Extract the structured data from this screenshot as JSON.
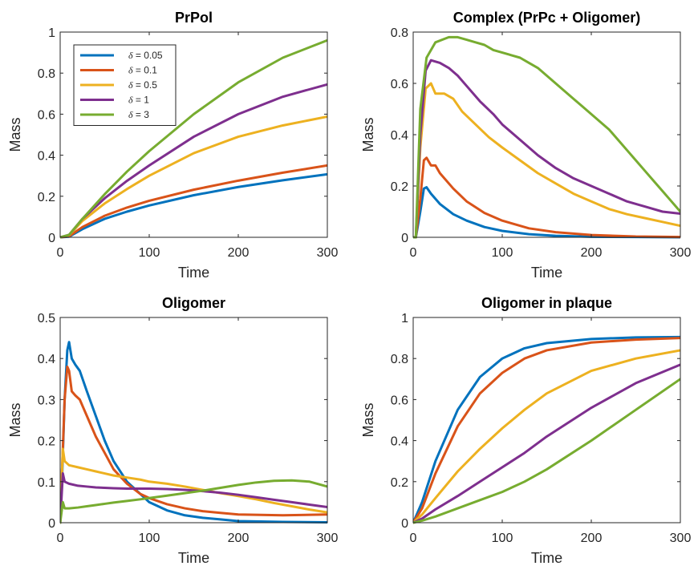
{
  "colors": {
    "0.05": "#0072BD",
    "0.1": "#D95319",
    "0.5": "#EDB120",
    "1": "#7E2F8E",
    "3": "#77AC30"
  },
  "legend": {
    "symbol": "δ",
    "entries": [
      {
        "delta": "0.05",
        "label": " = 0.05"
      },
      {
        "delta": "0.1",
        "label": " = 0.1"
      },
      {
        "delta": "0.5",
        "label": " = 0.5"
      },
      {
        "delta": "1",
        "label": " = 1"
      },
      {
        "delta": "3",
        "label": " = 3"
      }
    ]
  },
  "chart_data": [
    {
      "type": "line",
      "title": "PrPol",
      "xlabel": "Time",
      "ylabel": "Mass",
      "xlim": [
        0,
        300
      ],
      "ylim": [
        0,
        1
      ],
      "xticks": [
        0,
        100,
        200,
        300
      ],
      "yticks": [
        0,
        0.2,
        0.4,
        0.6,
        0.8,
        1
      ],
      "ytick_labels": [
        "0",
        "0.2",
        "0.4",
        "0.6",
        "0.8",
        "1"
      ],
      "legend_position": "top-left",
      "series": [
        {
          "delta": "0.05",
          "x": [
            0,
            10,
            25,
            50,
            75,
            100,
            150,
            200,
            250,
            300
          ],
          "y": [
            0,
            0.003,
            0.04,
            0.09,
            0.125,
            0.155,
            0.205,
            0.245,
            0.278,
            0.307
          ]
        },
        {
          "delta": "0.1",
          "x": [
            0,
            10,
            25,
            50,
            75,
            100,
            150,
            200,
            250,
            300
          ],
          "y": [
            0,
            0.005,
            0.05,
            0.105,
            0.145,
            0.178,
            0.232,
            0.276,
            0.315,
            0.35
          ]
        },
        {
          "delta": "0.5",
          "x": [
            0,
            10,
            25,
            50,
            75,
            100,
            150,
            200,
            250,
            300
          ],
          "y": [
            0,
            0.01,
            0.08,
            0.165,
            0.235,
            0.3,
            0.41,
            0.49,
            0.545,
            0.588
          ]
        },
        {
          "delta": "1",
          "x": [
            0,
            10,
            25,
            50,
            75,
            100,
            150,
            200,
            250,
            300
          ],
          "y": [
            0,
            0.012,
            0.09,
            0.19,
            0.275,
            0.35,
            0.49,
            0.6,
            0.685,
            0.745
          ]
        },
        {
          "delta": "3",
          "x": [
            0,
            10,
            25,
            50,
            75,
            100,
            150,
            200,
            250,
            300
          ],
          "y": [
            0,
            0.012,
            0.09,
            0.21,
            0.32,
            0.42,
            0.6,
            0.755,
            0.875,
            0.96
          ]
        }
      ]
    },
    {
      "type": "line",
      "title": "Complex (PrPc + Oligomer)",
      "xlabel": "Time",
      "ylabel": "Mass",
      "xlim": [
        0,
        300
      ],
      "ylim": [
        0,
        0.8
      ],
      "xticks": [
        0,
        100,
        200,
        300
      ],
      "yticks": [
        0,
        0.2,
        0.4,
        0.6,
        0.8
      ],
      "ytick_labels": [
        "0",
        "0.2",
        "0.4",
        "0.6",
        "0.8"
      ],
      "series": [
        {
          "delta": "0.05",
          "x": [
            0,
            3,
            8,
            12,
            15,
            20,
            30,
            45,
            60,
            80,
            100,
            130,
            160,
            200,
            250,
            300
          ],
          "y": [
            0,
            0,
            0.1,
            0.19,
            0.195,
            0.17,
            0.13,
            0.09,
            0.065,
            0.04,
            0.025,
            0.012,
            0.006,
            0.002,
            0.001,
            0
          ]
        },
        {
          "delta": "0.1",
          "x": [
            0,
            3,
            8,
            12,
            15,
            20,
            25,
            30,
            45,
            60,
            80,
            100,
            130,
            160,
            200,
            250,
            300
          ],
          "y": [
            0,
            0,
            0.15,
            0.3,
            0.31,
            0.28,
            0.28,
            0.25,
            0.19,
            0.14,
            0.095,
            0.065,
            0.035,
            0.02,
            0.009,
            0.003,
            0.001
          ]
        },
        {
          "delta": "0.5",
          "x": [
            0,
            3,
            8,
            14,
            20,
            25,
            35,
            45,
            55,
            70,
            85,
            100,
            120,
            140,
            160,
            180,
            200,
            220,
            240,
            260,
            280,
            300
          ],
          "y": [
            0,
            0,
            0.35,
            0.58,
            0.6,
            0.56,
            0.56,
            0.54,
            0.49,
            0.44,
            0.39,
            0.35,
            0.3,
            0.25,
            0.21,
            0.17,
            0.14,
            0.11,
            0.09,
            0.075,
            0.06,
            0.045
          ]
        },
        {
          "delta": "1",
          "x": [
            0,
            3,
            8,
            14,
            20,
            30,
            40,
            50,
            60,
            75,
            90,
            100,
            120,
            140,
            160,
            180,
            200,
            220,
            240,
            260,
            280,
            300
          ],
          "y": [
            0,
            0,
            0.4,
            0.65,
            0.69,
            0.68,
            0.66,
            0.63,
            0.59,
            0.53,
            0.48,
            0.44,
            0.38,
            0.32,
            0.27,
            0.23,
            0.2,
            0.17,
            0.14,
            0.12,
            0.1,
            0.092
          ]
        },
        {
          "delta": "3",
          "x": [
            0,
            3,
            8,
            15,
            25,
            40,
            50,
            60,
            70,
            80,
            90,
            100,
            110,
            120,
            130,
            140,
            150,
            160,
            170,
            180,
            190,
            200,
            210,
            220,
            230,
            240,
            250,
            260,
            270,
            280,
            290,
            300
          ],
          "y": [
            0,
            0,
            0.5,
            0.7,
            0.76,
            0.78,
            0.78,
            0.77,
            0.76,
            0.75,
            0.73,
            0.72,
            0.71,
            0.7,
            0.68,
            0.66,
            0.63,
            0.6,
            0.57,
            0.54,
            0.51,
            0.48,
            0.45,
            0.42,
            0.38,
            0.34,
            0.3,
            0.26,
            0.22,
            0.18,
            0.14,
            0.1
          ]
        }
      ]
    },
    {
      "type": "line",
      "title": "Oligomer",
      "xlabel": "Time",
      "ylabel": "Mass",
      "xlim": [
        0,
        300
      ],
      "ylim": [
        0,
        0.5
      ],
      "xticks": [
        0,
        100,
        200,
        300
      ],
      "yticks": [
        0,
        0.1,
        0.2,
        0.3,
        0.4,
        0.5
      ],
      "ytick_labels": [
        "0",
        "0.1",
        "0.2",
        "0.3",
        "0.4",
        "0.5"
      ],
      "series": [
        {
          "delta": "0.05",
          "x": [
            0,
            2,
            5,
            8,
            10,
            13,
            17,
            22,
            30,
            40,
            50,
            60,
            75,
            90,
            100,
            120,
            140,
            160,
            180,
            200,
            250,
            300
          ],
          "y": [
            0,
            0.1,
            0.3,
            0.42,
            0.44,
            0.4,
            0.385,
            0.37,
            0.32,
            0.26,
            0.2,
            0.15,
            0.1,
            0.07,
            0.05,
            0.03,
            0.018,
            0.012,
            0.008,
            0.004,
            0.002,
            0.001
          ]
        },
        {
          "delta": "0.1",
          "x": [
            0,
            2,
            5,
            8,
            10,
            13,
            17,
            22,
            30,
            40,
            50,
            60,
            75,
            90,
            100,
            120,
            140,
            160,
            180,
            200,
            250,
            300
          ],
          "y": [
            0,
            0.12,
            0.3,
            0.38,
            0.37,
            0.32,
            0.31,
            0.3,
            0.26,
            0.21,
            0.17,
            0.13,
            0.095,
            0.07,
            0.06,
            0.045,
            0.035,
            0.028,
            0.024,
            0.02,
            0.018,
            0.02
          ]
        },
        {
          "delta": "0.5",
          "x": [
            0,
            3,
            5,
            10,
            20,
            30,
            40,
            50,
            60,
            75,
            90,
            100,
            120,
            140,
            160,
            180,
            200,
            220,
            240,
            260,
            280,
            300
          ],
          "y": [
            0,
            0.18,
            0.15,
            0.14,
            0.135,
            0.13,
            0.125,
            0.12,
            0.115,
            0.11,
            0.105,
            0.1,
            0.095,
            0.088,
            0.08,
            0.072,
            0.065,
            0.057,
            0.048,
            0.04,
            0.032,
            0.025
          ]
        },
        {
          "delta": "1",
          "x": [
            0,
            3,
            5,
            10,
            20,
            30,
            40,
            50,
            60,
            75,
            90,
            100,
            120,
            140,
            160,
            180,
            200,
            220,
            240,
            260,
            280,
            300
          ],
          "y": [
            0,
            0.12,
            0.1,
            0.095,
            0.09,
            0.088,
            0.086,
            0.085,
            0.084,
            0.083,
            0.083,
            0.083,
            0.082,
            0.08,
            0.077,
            0.073,
            0.068,
            0.062,
            0.056,
            0.05,
            0.044,
            0.038
          ]
        },
        {
          "delta": "3",
          "x": [
            0,
            3,
            5,
            10,
            20,
            30,
            40,
            50,
            60,
            75,
            90,
            100,
            120,
            140,
            160,
            180,
            200,
            220,
            240,
            260,
            280,
            300
          ],
          "y": [
            0,
            0.05,
            0.035,
            0.035,
            0.037,
            0.04,
            0.043,
            0.046,
            0.049,
            0.053,
            0.057,
            0.06,
            0.066,
            0.072,
            0.078,
            0.085,
            0.092,
            0.098,
            0.102,
            0.103,
            0.1,
            0.088
          ]
        }
      ]
    },
    {
      "type": "line",
      "title": "Oligomer in plaque",
      "xlabel": "Time",
      "ylabel": "Mass",
      "xlim": [
        0,
        300
      ],
      "ylim": [
        0,
        1
      ],
      "xticks": [
        0,
        100,
        200,
        300
      ],
      "yticks": [
        0,
        0.2,
        0.4,
        0.6,
        0.8,
        1
      ],
      "ytick_labels": [
        "0",
        "0.2",
        "0.4",
        "0.6",
        "0.8",
        "1"
      ],
      "series": [
        {
          "delta": "0.05",
          "x": [
            0,
            10,
            25,
            50,
            75,
            100,
            125,
            150,
            200,
            250,
            300
          ],
          "y": [
            0,
            0.1,
            0.3,
            0.55,
            0.71,
            0.8,
            0.85,
            0.875,
            0.895,
            0.903,
            0.905
          ]
        },
        {
          "delta": "0.1",
          "x": [
            0,
            10,
            25,
            50,
            75,
            100,
            125,
            150,
            200,
            250,
            300
          ],
          "y": [
            0,
            0.07,
            0.24,
            0.47,
            0.63,
            0.73,
            0.8,
            0.84,
            0.878,
            0.892,
            0.9
          ]
        },
        {
          "delta": "0.5",
          "x": [
            0,
            10,
            25,
            50,
            75,
            100,
            125,
            150,
            200,
            250,
            300
          ],
          "y": [
            0,
            0.04,
            0.12,
            0.25,
            0.36,
            0.46,
            0.55,
            0.63,
            0.74,
            0.8,
            0.84
          ]
        },
        {
          "delta": "1",
          "x": [
            0,
            10,
            25,
            50,
            75,
            100,
            125,
            150,
            200,
            250,
            300
          ],
          "y": [
            0,
            0.02,
            0.065,
            0.13,
            0.2,
            0.27,
            0.34,
            0.42,
            0.56,
            0.68,
            0.77
          ]
        },
        {
          "delta": "3",
          "x": [
            0,
            10,
            25,
            50,
            75,
            100,
            125,
            150,
            200,
            250,
            300
          ],
          "y": [
            0,
            0.01,
            0.03,
            0.07,
            0.11,
            0.15,
            0.2,
            0.26,
            0.4,
            0.55,
            0.7
          ]
        }
      ]
    }
  ]
}
